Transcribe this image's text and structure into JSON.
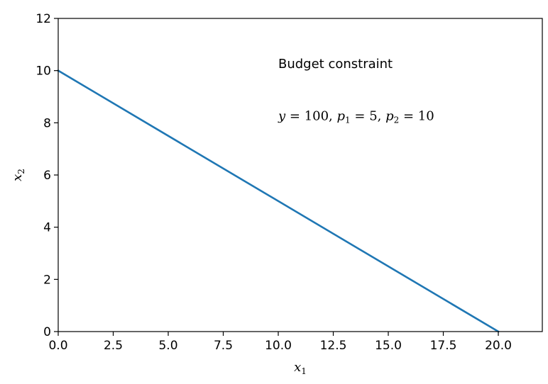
{
  "chart_data": {
    "type": "line",
    "xlim": [
      0,
      22
    ],
    "ylim": [
      0,
      12
    ],
    "xticks": [
      0.0,
      2.5,
      5.0,
      7.5,
      10.0,
      12.5,
      15.0,
      17.5,
      20.0
    ],
    "xtick_labels": [
      "0.0",
      "2.5",
      "5.0",
      "7.5",
      "10.0",
      "12.5",
      "15.0",
      "17.5",
      "20.0"
    ],
    "yticks": [
      0,
      2,
      4,
      6,
      8,
      10,
      12
    ],
    "ytick_labels": [
      "0",
      "2",
      "4",
      "6",
      "8",
      "10",
      "12"
    ],
    "xlabel": {
      "base": "x",
      "sub": "1"
    },
    "ylabel": {
      "base": "x",
      "sub": "2"
    },
    "grid": false,
    "series": [
      {
        "x": [
          0,
          20
        ],
        "y": [
          10,
          0
        ],
        "color": "#1f77b4"
      }
    ],
    "annotations": [
      {
        "text": "Budget constraint",
        "x": 10,
        "y": 10.1
      },
      {
        "x": 10,
        "y": 8.1,
        "parts": [
          {
            "t": "y",
            "italic": true
          },
          {
            "t": " = 100, "
          },
          {
            "t": "p",
            "italic": true
          },
          {
            "t": "1",
            "sub": true
          },
          {
            "t": " = 5, "
          },
          {
            "t": "p",
            "italic": true
          },
          {
            "t": "2",
            "sub": true
          },
          {
            "t": " = 10"
          }
        ]
      }
    ]
  }
}
